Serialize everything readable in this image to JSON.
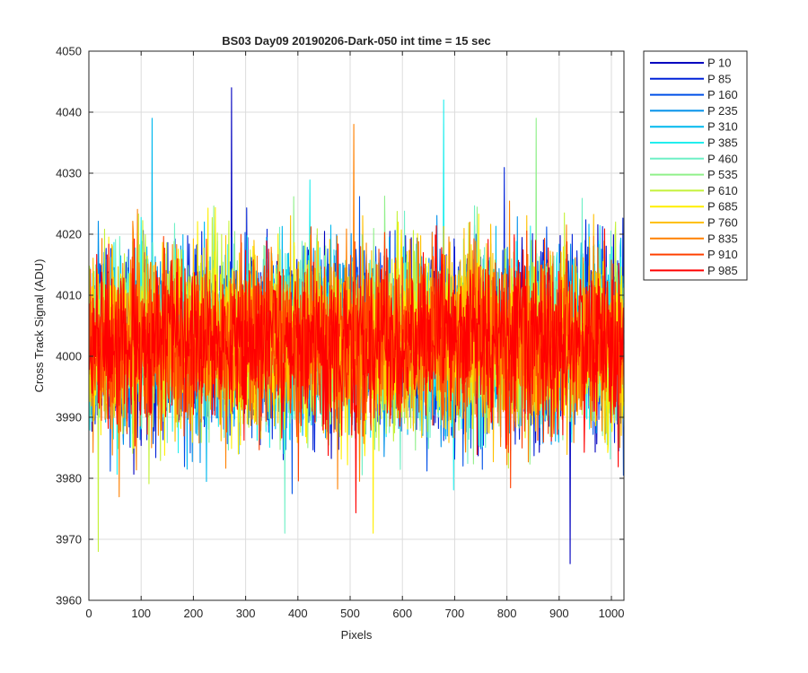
{
  "chart_data": {
    "type": "line",
    "title": "BS03 Day09 20190206-Dark-050 int time = 15 sec",
    "xlabel": "Pixels",
    "ylabel": "Cross Track Signal (ADU)",
    "xlim": [
      0,
      1024
    ],
    "ylim": [
      3960,
      4050
    ],
    "xticks": [
      0,
      100,
      200,
      300,
      400,
      500,
      600,
      700,
      800,
      900,
      1000
    ],
    "yticks": [
      3960,
      3970,
      3980,
      3990,
      4000,
      4010,
      4020,
      4030,
      4040,
      4050
    ],
    "grid": true,
    "legend_position": "outside-top-right",
    "noise": {
      "points_per_series": 1024,
      "center": 4002.5,
      "sigma": 7
    },
    "series": [
      {
        "name": "P 10",
        "color": "#0000bf"
      },
      {
        "name": "P 85",
        "color": "#0022d8"
      },
      {
        "name": "P 160",
        "color": "#0050e8"
      },
      {
        "name": "P 235",
        "color": "#0090ea"
      },
      {
        "name": "P 310",
        "color": "#00b8ee"
      },
      {
        "name": "P 385",
        "color": "#22eeee"
      },
      {
        "name": "P 460",
        "color": "#6ff0c6"
      },
      {
        "name": "P 535",
        "color": "#90f08a"
      },
      {
        "name": "P 610",
        "color": "#c4f23a"
      },
      {
        "name": "P 685",
        "color": "#ffee00"
      },
      {
        "name": "P 760",
        "color": "#ffc000"
      },
      {
        "name": "P 835",
        "color": "#ff8000"
      },
      {
        "name": "P 910",
        "color": "#ff4000"
      },
      {
        "name": "P 985",
        "color": "#ff0000"
      }
    ],
    "highlight_peaks": [
      {
        "series": "P 10",
        "x": 272,
        "y": 4044
      },
      {
        "series": "P 310",
        "x": 120,
        "y": 4039
      },
      {
        "series": "P 385",
        "x": 678,
        "y": 4042
      },
      {
        "series": "P 535",
        "x": 855,
        "y": 4039
      },
      {
        "series": "P 835",
        "x": 506,
        "y": 4038
      },
      {
        "series": "P 10",
        "x": 920,
        "y": 3966
      },
      {
        "series": "P 610",
        "x": 17,
        "y": 3968
      },
      {
        "series": "P 685",
        "x": 543,
        "y": 3971
      },
      {
        "series": "P 460",
        "x": 374,
        "y": 3971
      }
    ]
  }
}
